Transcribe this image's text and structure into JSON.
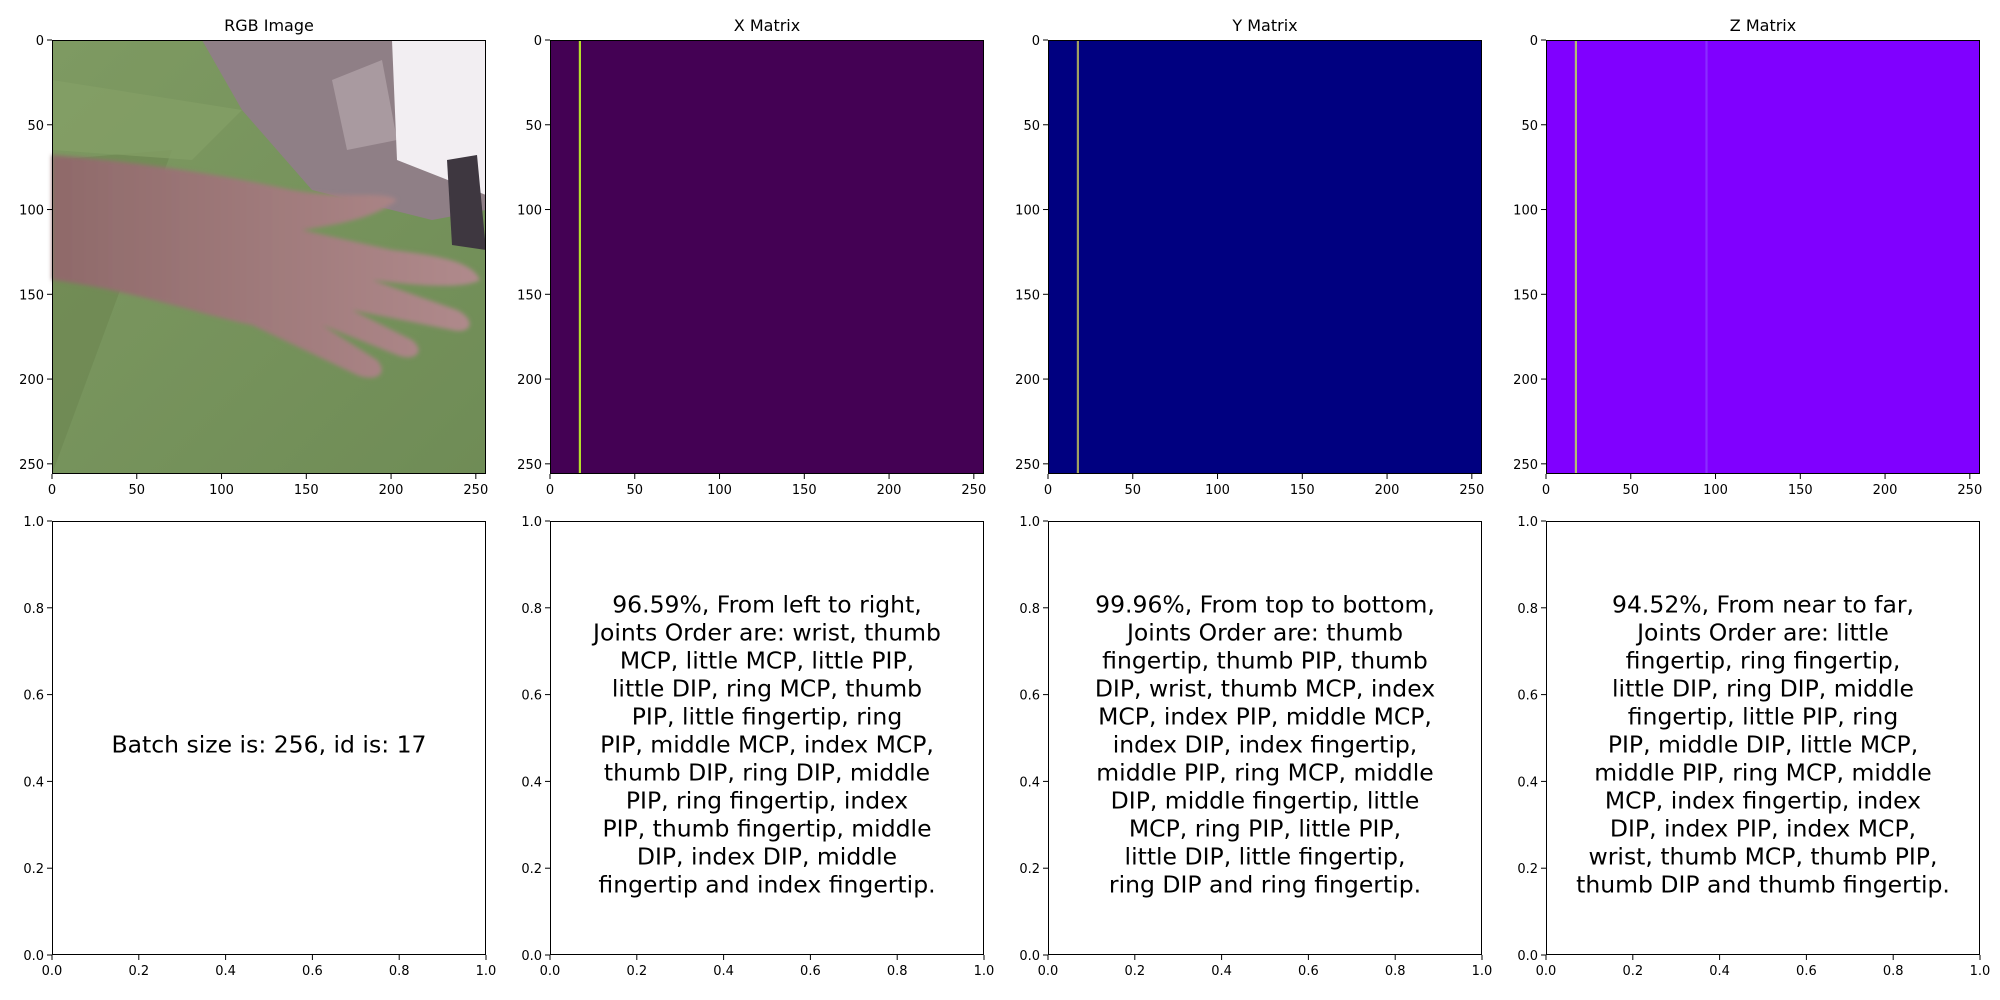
{
  "chart_data": [
    {
      "type": "heatmap",
      "title": "RGB Image",
      "image": "photo of a hand over a green background",
      "xlim": [
        0,
        256
      ],
      "ylim": [
        256,
        0
      ],
      "xticks": [
        "0",
        "50",
        "100",
        "150",
        "200",
        "250"
      ],
      "yticks": [
        "0",
        "50",
        "100",
        "150",
        "200",
        "250"
      ]
    },
    {
      "type": "heatmap",
      "title": "X Matrix",
      "colormap": "viridis",
      "background_color": "#440154",
      "highlight_columns": [
        {
          "x": 17,
          "color": "#b5de2b"
        }
      ],
      "xlim": [
        0,
        256
      ],
      "ylim": [
        256,
        0
      ],
      "xticks": [
        "0",
        "50",
        "100",
        "150",
        "200",
        "250"
      ],
      "yticks": [
        "0",
        "50",
        "100",
        "150",
        "200",
        "250"
      ]
    },
    {
      "type": "heatmap",
      "title": "Y Matrix",
      "colormap": "jet",
      "background_color": "#000080",
      "highlight_columns": [
        {
          "x": 17,
          "color": "#a0a060"
        }
      ],
      "xlim": [
        0,
        256
      ],
      "ylim": [
        256,
        0
      ],
      "xticks": [
        "0",
        "50",
        "100",
        "150",
        "200",
        "250"
      ],
      "yticks": [
        "0",
        "50",
        "100",
        "150",
        "200",
        "250"
      ]
    },
    {
      "type": "heatmap",
      "title": "Z Matrix",
      "colormap": "rainbow",
      "background_color": "#8000ff",
      "highlight_columns": [
        {
          "x": 17,
          "color": "#b0c070"
        },
        {
          "x": 94,
          "color": "#8a2cff"
        }
      ],
      "xlim": [
        0,
        256
      ],
      "ylim": [
        256,
        0
      ],
      "xticks": [
        "0",
        "50",
        "100",
        "150",
        "200",
        "250"
      ],
      "yticks": [
        "0",
        "50",
        "100",
        "150",
        "200",
        "250"
      ]
    },
    {
      "type": "table",
      "title": "",
      "lines": [
        "Batch size is: 256, id is: 17"
      ],
      "xlim": [
        0,
        1
      ],
      "ylim": [
        0,
        1
      ],
      "xticks": [
        "0.0",
        "0.2",
        "0.4",
        "0.6",
        "0.8",
        "1.0"
      ],
      "yticks": [
        "0.0",
        "0.2",
        "0.4",
        "0.6",
        "0.8",
        "1.0"
      ]
    },
    {
      "type": "table",
      "title": "",
      "lines": [
        "96.59%, From left to right,",
        "Joints Order are: wrist, thumb",
        "MCP, little MCP, little PIP,",
        "little DIP, ring MCP, thumb",
        "PIP, little fingertip, ring",
        "PIP, middle MCP, index MCP,",
        "thumb DIP, ring DIP, middle",
        "PIP, ring fingertip, index",
        "PIP, thumb fingertip, middle",
        "DIP, index DIP, middle",
        "fingertip and index fingertip."
      ],
      "xlim": [
        0,
        1
      ],
      "ylim": [
        0,
        1
      ],
      "xticks": [
        "0.0",
        "0.2",
        "0.4",
        "0.6",
        "0.8",
        "1.0"
      ],
      "yticks": [
        "0.0",
        "0.2",
        "0.4",
        "0.6",
        "0.8",
        "1.0"
      ]
    },
    {
      "type": "table",
      "title": "",
      "lines": [
        "99.96%, From top to bottom,",
        "Joints Order are: thumb",
        "fingertip, thumb PIP, thumb",
        "DIP, wrist, thumb MCP, index",
        "MCP, index PIP, middle MCP,",
        "index DIP, index fingertip,",
        "middle PIP, ring MCP, middle",
        "DIP, middle fingertip, little",
        "MCP, ring PIP, little PIP,",
        "little DIP, little fingertip,",
        "ring DIP and ring fingertip."
      ],
      "xlim": [
        0,
        1
      ],
      "ylim": [
        0,
        1
      ],
      "xticks": [
        "0.0",
        "0.2",
        "0.4",
        "0.6",
        "0.8",
        "1.0"
      ],
      "yticks": [
        "0.0",
        "0.2",
        "0.4",
        "0.6",
        "0.8",
        "1.0"
      ]
    },
    {
      "type": "table",
      "title": "",
      "lines": [
        "94.52%, From near to far,",
        "Joints Order are: little",
        "fingertip, ring fingertip,",
        "little DIP, ring DIP, middle",
        "fingertip, little PIP, ring",
        "PIP, middle DIP, little MCP,",
        "middle PIP, ring MCP, middle",
        "MCP, index fingertip, index",
        "DIP, index PIP, index MCP,",
        "wrist, thumb MCP, thumb PIP,",
        "thumb DIP and thumb fingertip."
      ],
      "xlim": [
        0,
        1
      ],
      "ylim": [
        0,
        1
      ],
      "xticks": [
        "0.0",
        "0.2",
        "0.4",
        "0.6",
        "0.8",
        "1.0"
      ],
      "yticks": [
        "0.0",
        "0.2",
        "0.4",
        "0.6",
        "0.8",
        "1.0"
      ]
    }
  ]
}
